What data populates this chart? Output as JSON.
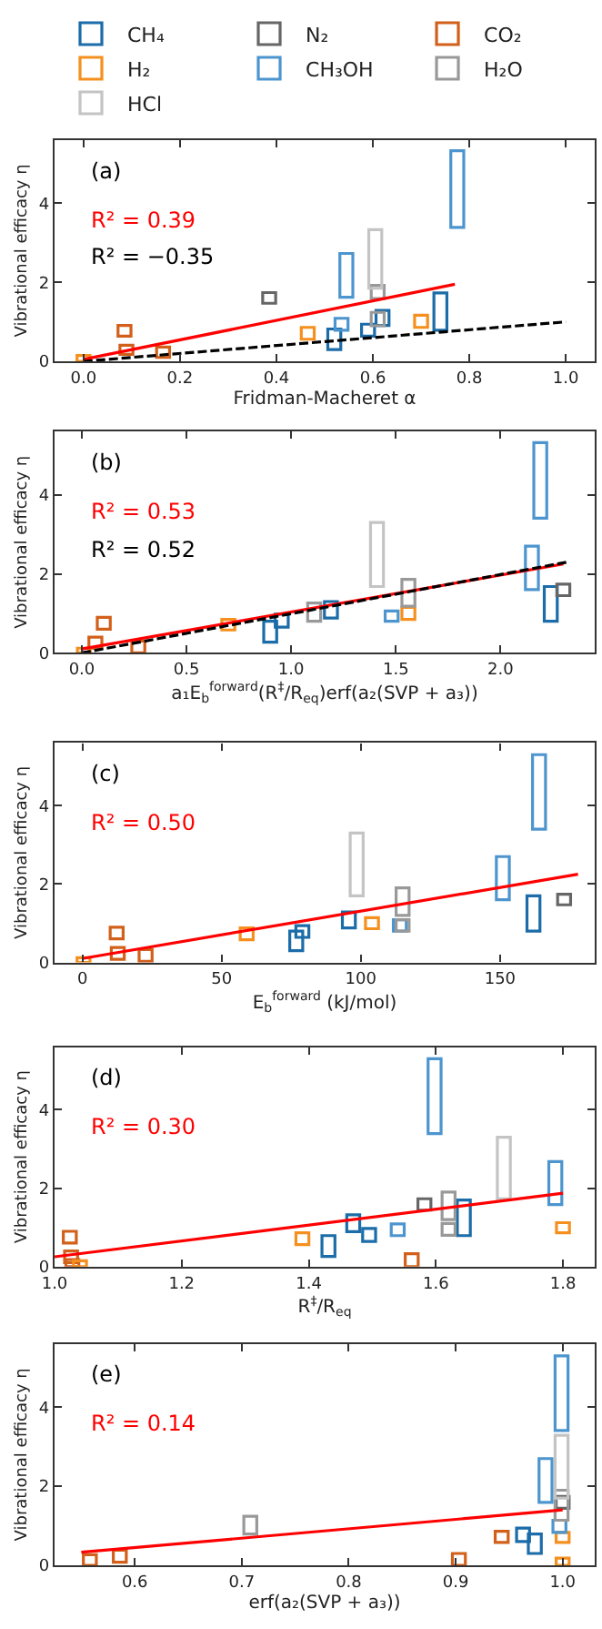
{
  "chart_data": [
    {
      "type": "bar",
      "legend": "top",
      "annotations": [
        "(a)"
      ],
      "xlabel": "Fridman-Macheret α",
      "ylabel": "Vibrational efficacy η",
      "xlim": [
        -0.06,
        1.06
      ],
      "xticks": [
        {
          "value": 0,
          "label": "0.0"
        },
        0.2,
        0.4,
        0.6,
        0.8,
        {
          "value": 1,
          "label": "1.0"
        }
      ],
      "ylim": [
        0,
        5.6
      ],
      "yticks": [
        0,
        2,
        4
      ],
      "series": [
        {
          "name": "CH₄",
          "color": "#1b6ca8",
          "x": [
            0.52,
            0.59,
            0.62,
            0.74
          ],
          "base": [
            0.3,
            0.64,
            0.91,
            0.79
          ],
          "values": [
            0.52,
            0.3,
            0.38,
            0.94
          ]
        },
        {
          "name": "N₂",
          "color": "#666666",
          "x": [
            0.385
          ],
          "base": [
            1.47
          ],
          "values": [
            0.27
          ]
        },
        {
          "name": "CO₂",
          "color": "#d2601a",
          "x": [
            0.085,
            0.089,
            0.165
          ],
          "base": [
            0.64,
            0.18,
            0.1
          ],
          "values": [
            0.27,
            0.23,
            0.26
          ]
        },
        {
          "name": "H₂",
          "color": "#f5901e",
          "x": [
            0.0,
            0.465,
            0.7
          ],
          "base": [
            0,
            0.56,
            0.86
          ],
          "values": [
            0.15,
            0.3,
            0.31
          ]
        },
        {
          "name": "CH₃OH",
          "color": "#4c95cf",
          "x": [
            0.535,
            0.545,
            0.775
          ],
          "base": [
            0.79,
            1.62,
            3.39
          ],
          "values": [
            0.3,
            1.11,
            1.94
          ]
        },
        {
          "name": "H₂O",
          "color": "#999999",
          "x": [
            0.61,
            0.61
          ],
          "base": [
            1.59,
            0.9
          ],
          "values": [
            0.33,
            0.34
          ]
        },
        {
          "name": "HCl",
          "color": "#c4c4c4",
          "x": [
            0.605
          ],
          "base": [
            1.85
          ],
          "values": [
            1.48
          ]
        },
        {
          "type": "line",
          "name": "R² = 0.39",
          "color": "#ff0000",
          "x": [
            0,
            0.77
          ],
          "values": [
            0.05,
            1.95
          ]
        },
        {
          "type": "line",
          "name": "R² = −0.35",
          "color": "#000000",
          "line_style": "dashed",
          "x": [
            0,
            1.0
          ],
          "values": [
            0,
            1.0
          ]
        }
      ]
    },
    {
      "type": "bar",
      "annotations": [
        "(b)"
      ],
      "xlabel": "a₁E$_{b}$$^{forward}$(R$^{‡}$/R$_{eq}$)erf(a₂(SVP + a₃))",
      "ylabel": "Vibrational efficacy η",
      "xlim": [
        -0.13,
        2.45
      ],
      "xticks": [
        {
          "value": 0,
          "label": "0.0"
        },
        0.5,
        {
          "value": 1,
          "label": "1.0"
        },
        1.5,
        {
          "value": 2,
          "label": "2.0"
        }
      ],
      "ylim": [
        0,
        5.6
      ],
      "yticks": [
        0,
        2,
        4
      ],
      "series": [
        {
          "color": "#1b6ca8",
          "x": [
            0.9,
            0.955,
            1.19,
            2.24
          ],
          "base": [
            0.27,
            0.65,
            0.88,
            0.8
          ],
          "values": [
            0.53,
            0.33,
            0.42,
            0.88
          ]
        },
        {
          "color": "#666666",
          "x": [
            2.3
          ],
          "base": [
            1.45
          ],
          "values": [
            0.29
          ]
        },
        {
          "color": "#d2601a",
          "x": [
            0.065,
            0.105,
            0.27
          ],
          "base": [
            0.12,
            0.6,
            0
          ],
          "values": [
            0.28,
            0.3,
            0.3
          ]
        },
        {
          "color": "#f5901e",
          "x": [
            0.01,
            0.7,
            1.56
          ],
          "base": [
            0,
            0.58,
            0.85
          ],
          "values": [
            0.12,
            0.27,
            0.3
          ]
        },
        {
          "color": "#4c95cf",
          "x": [
            1.48,
            2.15,
            2.19
          ],
          "base": [
            0.8,
            1.6,
            3.41
          ],
          "values": [
            0.26,
            1.1,
            1.91
          ]
        },
        {
          "color": "#999999",
          "x": [
            1.11,
            1.56
          ],
          "base": [
            0.8,
            1.18
          ],
          "values": [
            0.46,
            0.68
          ]
        },
        {
          "color": "#c4c4c4",
          "x": [
            1.41
          ],
          "base": [
            1.68
          ],
          "values": [
            1.62
          ]
        },
        {
          "type": "line",
          "name": "R² = 0.53",
          "color": "#ff0000",
          "x": [
            0,
            2.3
          ],
          "values": [
            0.1,
            2.25
          ]
        },
        {
          "type": "line",
          "name": "R² = 0.52",
          "color": "#000000",
          "line_style": "dashed",
          "x": [
            0,
            2.32
          ],
          "values": [
            0,
            2.3
          ]
        }
      ]
    },
    {
      "type": "bar",
      "annotations": [
        "(c)"
      ],
      "xlabel": "E$_{b}$$^{forward}$ (kJ/mol)",
      "ylabel": "Vibrational efficacy η",
      "xlim": [
        -10,
        184
      ],
      "xticks": [
        0,
        50,
        100,
        150
      ],
      "ylim": [
        0,
        5.6
      ],
      "yticks": [
        0,
        2,
        4
      ],
      "series": [
        {
          "color": "#1b6ca8",
          "x": [
            76.8,
            79,
            95.7,
            162
          ],
          "base": [
            0.3,
            0.64,
            0.88,
            0.8
          ],
          "values": [
            0.5,
            0.3,
            0.41,
            0.9
          ]
        },
        {
          "color": "#666666",
          "x": [
            173
          ],
          "base": [
            1.47
          ],
          "values": [
            0.27
          ]
        },
        {
          "color": "#d2601a",
          "x": [
            12.3,
            12.7,
            22.7
          ],
          "base": [
            0.6,
            0.08,
            0.03
          ],
          "values": [
            0.3,
            0.3,
            0.3
          ]
        },
        {
          "color": "#f5901e",
          "x": [
            0.4,
            59,
            104
          ],
          "base": [
            0,
            0.58,
            0.86
          ],
          "values": [
            0.12,
            0.3,
            0.28
          ]
        },
        {
          "color": "#4c95cf",
          "x": [
            114,
            151,
            164
          ],
          "base": [
            0.8,
            1.6,
            3.4
          ],
          "values": [
            0.29,
            1.1,
            1.9
          ]
        },
        {
          "color": "#999999",
          "x": [
            115,
            115
          ],
          "base": [
            1.2,
            0.8
          ],
          "values": [
            0.7,
            0.29
          ]
        },
        {
          "color": "#c4c4c4",
          "x": [
            98.5
          ],
          "base": [
            1.7
          ],
          "values": [
            1.6
          ]
        },
        {
          "type": "line",
          "name": "R² = 0.50",
          "color": "#ff0000",
          "x": [
            0,
            178
          ],
          "values": [
            0.1,
            2.25
          ]
        }
      ]
    },
    {
      "type": "bar",
      "annotations": [
        "(d)"
      ],
      "xlabel": "R$^{‡}$/R$_{eq}$",
      "ylabel": "Vibrational efficacy η",
      "xlim": [
        1.0,
        1.85
      ],
      "xticks": [
        {
          "value": 1,
          "label": "1.0"
        },
        1.2,
        1.4,
        1.6,
        1.8
      ],
      "ylim": [
        0,
        5.6
      ],
      "yticks": [
        0,
        2,
        4
      ],
      "series": [
        {
          "color": "#1b6ca8",
          "x": [
            1.431,
            1.47,
            1.495,
            1.644
          ],
          "base": [
            0.26,
            0.89,
            0.64,
            0.79
          ],
          "values": [
            0.53,
            0.43,
            0.33,
            0.91
          ]
        },
        {
          "color": "#666666",
          "x": [
            1.582
          ],
          "base": [
            1.44
          ],
          "values": [
            0.29
          ]
        },
        {
          "color": "#d2601a",
          "x": [
            1.024,
            1.026,
            1.028,
            1.562
          ],
          "base": [
            0.6,
            0.1,
            0,
            0
          ],
          "values": [
            0.3,
            0.3,
            0.18,
            0.33
          ]
        },
        {
          "color": "#f5901e",
          "x": [
            1.04,
            1.39,
            1.8
          ],
          "base": [
            0,
            0.56,
            0.86
          ],
          "values": [
            0.15,
            0.3,
            0.26
          ]
        },
        {
          "color": "#4c95cf",
          "x": [
            1.54,
            1.598,
            1.788
          ],
          "base": [
            0.79,
            3.39,
            1.58
          ],
          "values": [
            0.3,
            1.91,
            1.1
          ]
        },
        {
          "color": "#999999",
          "x": [
            1.62,
            1.62
          ],
          "base": [
            1.2,
            0.8
          ],
          "values": [
            0.7,
            0.3
          ]
        },
        {
          "color": "#c4c4c4",
          "x": [
            1.707
          ],
          "base": [
            1.73
          ],
          "values": [
            1.57
          ]
        },
        {
          "type": "line",
          "name": "R² = 0.30",
          "color": "#ff0000",
          "x": [
            1.0,
            1.8
          ],
          "values": [
            0.25,
            1.87
          ]
        }
      ]
    },
    {
      "type": "bar",
      "annotations": [
        "(e)"
      ],
      "xlabel": "erf(a₂(SVP + a₃))",
      "ylabel": "Vibrational efficacy η",
      "xlim": [
        0.525,
        1.03
      ],
      "xticks": [
        0.6,
        0.7,
        0.8,
        0.9,
        {
          "value": 1,
          "label": "1.0"
        }
      ],
      "ylim": [
        0,
        5.6
      ],
      "yticks": [
        0,
        2,
        4
      ],
      "series": [
        {
          "color": "#1b6ca8",
          "x": [
            0.963,
            0.974
          ],
          "base": [
            0.6,
            0.3
          ],
          "values": [
            0.34,
            0.49
          ]
        },
        {
          "color": "#666666",
          "x": [
            1.0
          ],
          "base": [
            1.44
          ],
          "values": [
            0.3
          ]
        },
        {
          "color": "#d2601a",
          "x": [
            0.558,
            0.586,
            0.903,
            0.943
          ],
          "base": [
            0,
            0.08,
            0,
            0.58
          ],
          "values": [
            0.27,
            0.3,
            0.3,
            0.28
          ]
        },
        {
          "color": "#f5901e",
          "x": [
            1.0,
            1.0
          ],
          "base": [
            0.58,
            0
          ],
          "values": [
            0.25,
            0.18
          ]
        },
        {
          "color": "#4c95cf",
          "x": [
            0.984,
            0.997,
            0.999
          ],
          "base": [
            1.59,
            0.83,
            3.41
          ],
          "values": [
            1.11,
            0.31,
            1.89
          ]
        },
        {
          "color": "#999999",
          "x": [
            0.708,
            0.999
          ],
          "base": [
            0.79,
            1.14
          ],
          "values": [
            0.45,
            0.76
          ]
        },
        {
          "color": "#c4c4c4",
          "x": [
            0.999
          ],
          "base": [
            1.7
          ],
          "values": [
            1.59
          ]
        },
        {
          "type": "line",
          "name": "R² = 0.14",
          "color": "#ff0000",
          "x": [
            0.55,
            1.0
          ],
          "values": [
            0.33,
            1.4
          ]
        }
      ]
    }
  ]
}
